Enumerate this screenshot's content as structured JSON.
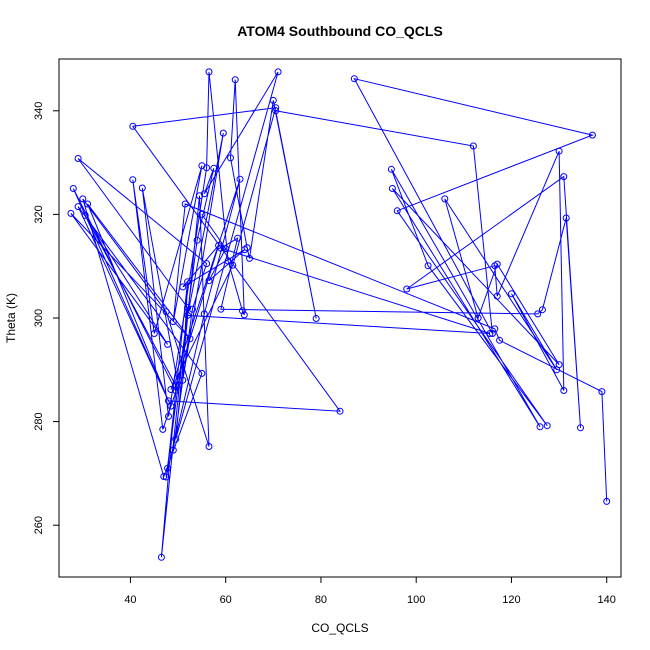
{
  "chart_data": {
    "type": "scatter",
    "title": "ATOM4 Southbound CO_QCLS",
    "xlabel": "CO_QCLS",
    "ylabel": "Theta (K)",
    "xlim": [
      25,
      143
    ],
    "ylim": [
      250,
      350
    ],
    "x_ticks": [
      40,
      60,
      80,
      100,
      120,
      140
    ],
    "y_ticks": [
      260,
      280,
      300,
      320,
      340
    ],
    "grid": false,
    "legend": "none",
    "style": "points connected by lines",
    "color": "#0000ff",
    "points": [
      {
        "x": 140.0,
        "y": 264.6
      },
      {
        "x": 139.0,
        "y": 285.8
      },
      {
        "x": 117.5,
        "y": 295.7
      },
      {
        "x": 116.5,
        "y": 297.9
      },
      {
        "x": 51.5,
        "y": 322.0
      },
      {
        "x": 49.0,
        "y": 299.3
      },
      {
        "x": 55.0,
        "y": 329.4
      },
      {
        "x": 45.0,
        "y": 297.0
      },
      {
        "x": 40.5,
        "y": 326.7
      },
      {
        "x": 46.8,
        "y": 278.5
      },
      {
        "x": 50.0,
        "y": 287.0
      },
      {
        "x": 42.5,
        "y": 325.1
      },
      {
        "x": 48.0,
        "y": 281.0
      },
      {
        "x": 56.0,
        "y": 329.0
      },
      {
        "x": 56.5,
        "y": 347.5
      },
      {
        "x": 60.5,
        "y": 311.0
      },
      {
        "x": 63.5,
        "y": 301.4
      },
      {
        "x": 63.9,
        "y": 300.6
      },
      {
        "x": 62.0,
        "y": 346.0
      },
      {
        "x": 61.0,
        "y": 330.9
      },
      {
        "x": 64.5,
        "y": 313.6
      },
      {
        "x": 65.0,
        "y": 311.5
      },
      {
        "x": 70.0,
        "y": 342.0
      },
      {
        "x": 79.0,
        "y": 299.9
      },
      {
        "x": 70.5,
        "y": 340.0
      },
      {
        "x": 112.0,
        "y": 333.2
      },
      {
        "x": 116.0,
        "y": 297.0
      },
      {
        "x": 87.0,
        "y": 346.2
      },
      {
        "x": 137.0,
        "y": 335.3
      },
      {
        "x": 96.0,
        "y": 320.7
      },
      {
        "x": 127.5,
        "y": 279.2
      },
      {
        "x": 102.5,
        "y": 310.1
      },
      {
        "x": 94.8,
        "y": 328.7
      },
      {
        "x": 126.0,
        "y": 279.0
      },
      {
        "x": 95.0,
        "y": 325.0
      },
      {
        "x": 130.0,
        "y": 291.0
      },
      {
        "x": 117.0,
        "y": 310.4
      },
      {
        "x": 113.0,
        "y": 300.0
      },
      {
        "x": 106.0,
        "y": 323.0
      },
      {
        "x": 129.5,
        "y": 290.0
      },
      {
        "x": 120.0,
        "y": 304.7
      },
      {
        "x": 131.0,
        "y": 286.0
      },
      {
        "x": 130.0,
        "y": 332.2
      },
      {
        "x": 117.0,
        "y": 304.2
      },
      {
        "x": 116.5,
        "y": 310.1
      },
      {
        "x": 98.0,
        "y": 305.6
      },
      {
        "x": 131.0,
        "y": 327.3
      },
      {
        "x": 134.5,
        "y": 278.8
      },
      {
        "x": 131.5,
        "y": 319.3
      },
      {
        "x": 126.5,
        "y": 301.6
      },
      {
        "x": 125.5,
        "y": 300.8
      },
      {
        "x": 59.0,
        "y": 301.7
      },
      {
        "x": 62.5,
        "y": 315.4
      },
      {
        "x": 59.0,
        "y": 313.5
      },
      {
        "x": 115.5,
        "y": 297.0
      },
      {
        "x": 52.0,
        "y": 300.5
      },
      {
        "x": 59.5,
        "y": 335.7
      },
      {
        "x": 51.0,
        "y": 288.0
      },
      {
        "x": 52.0,
        "y": 307.0
      },
      {
        "x": 47.8,
        "y": 271.0
      },
      {
        "x": 49.0,
        "y": 274.5
      },
      {
        "x": 53.0,
        "y": 301.7
      },
      {
        "x": 56.0,
        "y": 310.5
      },
      {
        "x": 29.0,
        "y": 330.8
      },
      {
        "x": 52.0,
        "y": 302.0
      },
      {
        "x": 46.5,
        "y": 253.8
      },
      {
        "x": 49.5,
        "y": 286.0
      },
      {
        "x": 28.0,
        "y": 325.0
      },
      {
        "x": 48.5,
        "y": 283.0
      },
      {
        "x": 29.0,
        "y": 321.5
      },
      {
        "x": 55.0,
        "y": 289.3
      },
      {
        "x": 47.0,
        "y": 269.4
      },
      {
        "x": 30.0,
        "y": 323.0
      },
      {
        "x": 47.5,
        "y": 301.2
      },
      {
        "x": 56.5,
        "y": 275.2
      },
      {
        "x": 54.5,
        "y": 323.6
      },
      {
        "x": 49.5,
        "y": 276.6
      },
      {
        "x": 71.0,
        "y": 347.5
      },
      {
        "x": 55.5,
        "y": 324.0
      },
      {
        "x": 57.5,
        "y": 328.9
      },
      {
        "x": 54.0,
        "y": 315.0
      },
      {
        "x": 47.5,
        "y": 269.3
      },
      {
        "x": 55.5,
        "y": 300.8
      },
      {
        "x": 63.0,
        "y": 326.8
      },
      {
        "x": 48.5,
        "y": 286.2
      },
      {
        "x": 61.5,
        "y": 310.2
      },
      {
        "x": 70.5,
        "y": 340.6
      },
      {
        "x": 40.5,
        "y": 337.0
      },
      {
        "x": 84.0,
        "y": 282.0
      },
      {
        "x": 48.0,
        "y": 284.0
      },
      {
        "x": 31.0,
        "y": 322.0
      },
      {
        "x": 52.5,
        "y": 296.0
      },
      {
        "x": 27.5,
        "y": 320.2
      },
      {
        "x": 47.8,
        "y": 294.9
      },
      {
        "x": 30.5,
        "y": 319.8
      },
      {
        "x": 49.5,
        "y": 287.0
      },
      {
        "x": 58.5,
        "y": 314.0
      },
      {
        "x": 51.0,
        "y": 306.0
      },
      {
        "x": 64.0,
        "y": 313.2
      },
      {
        "x": 56.5,
        "y": 307.2
      },
      {
        "x": 60.0,
        "y": 313.4
      },
      {
        "x": 55.0,
        "y": 320.0
      }
    ]
  }
}
